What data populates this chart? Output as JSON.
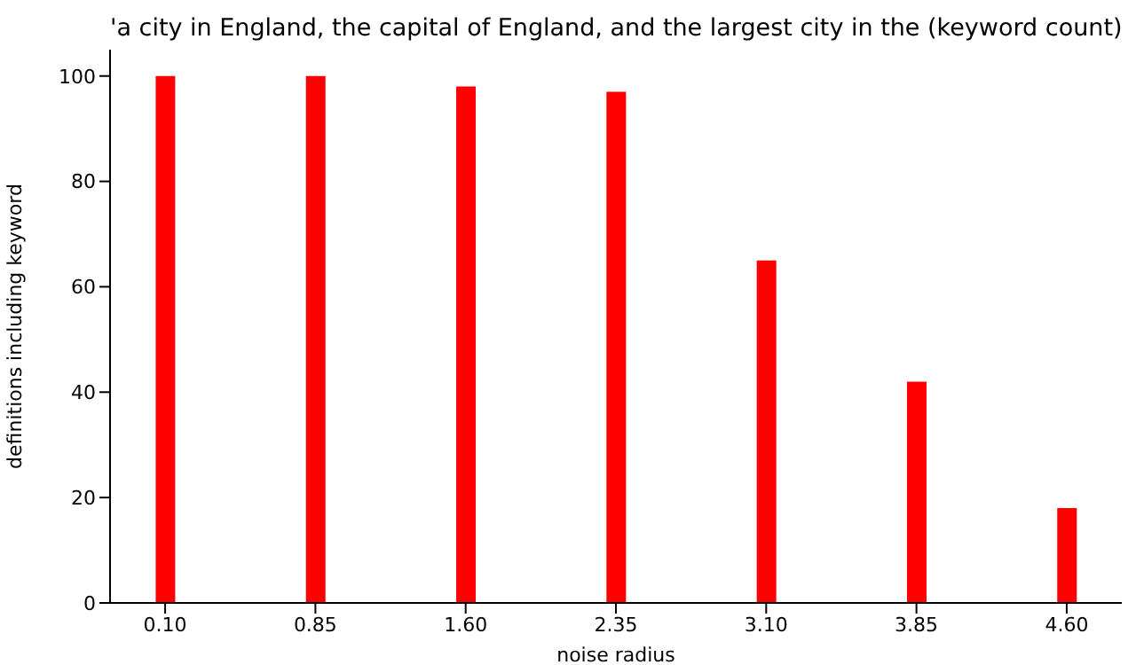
{
  "chart_data": {
    "type": "bar",
    "title": "'a city in England, the capital of England, and the largest city in the (keyword count)",
    "xlabel": "noise radius",
    "ylabel": "definitions including keyword",
    "x": [
      0.1,
      0.85,
      1.6,
      2.35,
      3.1,
      3.85,
      4.6
    ],
    "values": [
      100,
      100,
      98,
      97,
      65,
      42,
      18
    ],
    "color": "#ff0000",
    "xlim": [
      -0.175,
      4.875
    ],
    "xticks": [
      {
        "value": 0.1,
        "label": "0.10"
      },
      {
        "value": 0.85,
        "label": "0.85"
      },
      {
        "value": 1.6,
        "label": "1.60"
      },
      {
        "value": 2.35,
        "label": "2.35"
      },
      {
        "value": 3.1,
        "label": "3.10"
      },
      {
        "value": 3.85,
        "label": "3.85"
      },
      {
        "value": 4.6,
        "label": "4.60"
      }
    ],
    "ylim": [
      0,
      105
    ],
    "yticks": [
      0,
      20,
      40,
      60,
      80,
      100
    ],
    "grid": false,
    "legend": false
  }
}
